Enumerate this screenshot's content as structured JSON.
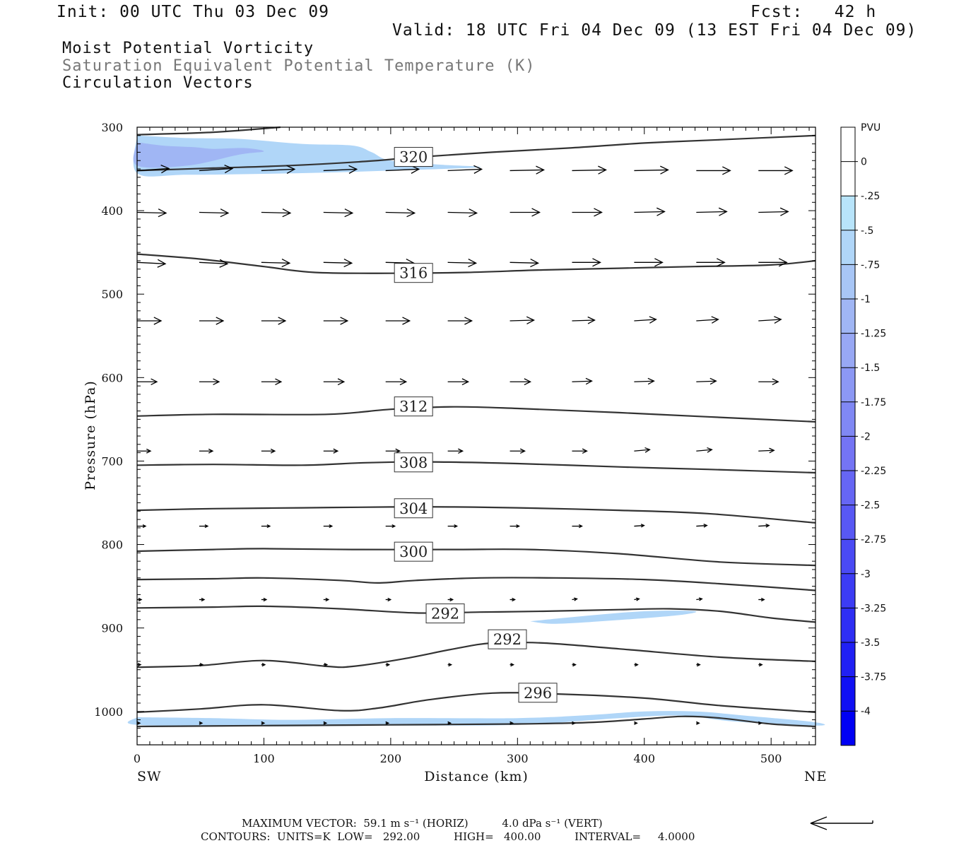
{
  "header": {
    "init": "Init: 00 UTC Thu 03 Dec 09",
    "fcst": "Fcst:   42 h",
    "valid": "Valid: 18 UTC Fri 04 Dec 09 (13 EST Fri 04 Dec 09)",
    "line1": "Moist Potential Vorticity",
    "line2": "Saturation Equivalent Potential Temperature (K)",
    "line3": "Circulation Vectors"
  },
  "footer": {
    "max_vector": "MAXIMUM VECTOR:  59.1 m s⁻¹ (HORIZ)          4.0 dPa s⁻¹ (VERT)",
    "contours": "CONTOURS:  UNITS=K  LOW=   292.00          HIGH=   400.00          INTERVAL=     4.0000"
  },
  "colors": {
    "fill_025": "#b8e4fa",
    "fill_075": "#a8c6f6",
    "contour": "#333333",
    "vector": "#000000"
  },
  "chart_data": {
    "type": "cross-section",
    "xlabel": "Distance (km)",
    "ylabel": "Pressure (hPa)",
    "xlim": [
      0,
      535
    ],
    "ylim": [
      1040,
      300
    ],
    "x_ticks": [
      0,
      100,
      200,
      300,
      400,
      500
    ],
    "y_ticks": [
      300,
      400,
      500,
      600,
      700,
      800,
      900,
      1000
    ],
    "x_left_label": "SW",
    "x_right_label": "NE",
    "colorbar": {
      "title": "PVU",
      "labels": [
        "0",
        "-.25",
        "-.5",
        "-.75",
        "-1",
        "-1.25",
        "-1.5",
        "-1.75",
        "-2",
        "-2.25",
        "-2.5",
        "-2.75",
        "-3",
        "-3.25",
        "-3.5",
        "-3.75",
        "-4"
      ],
      "colors": [
        "#ffffff",
        "#ffffff",
        "#b8e4fa",
        "#b0d6f8",
        "#a8c6f6",
        "#a0b6f4",
        "#98a8f4",
        "#8c98f4",
        "#8088f4",
        "#7474f4",
        "#6666f4",
        "#5858f4",
        "#4a4af4",
        "#3c3cf4",
        "#2e2ef4",
        "#2020f4",
        "#1010f4",
        "#0000f4"
      ]
    },
    "contours": [
      {
        "level": 320,
        "label": "320",
        "points": [
          [
            0,
            309
          ],
          [
            60,
            306
          ],
          [
            113,
            300
          ]
        ]
      },
      {
        "level": 320,
        "label": "320",
        "label_at": [
          218,
          336
        ],
        "points": [
          [
            0,
            352
          ],
          [
            60,
            349
          ],
          [
            120,
            346
          ],
          [
            180,
            341
          ],
          [
            220,
            336
          ],
          [
            280,
            330
          ],
          [
            340,
            325
          ],
          [
            400,
            319
          ],
          [
            460,
            315
          ],
          [
            535,
            310
          ]
        ]
      },
      {
        "level": 316,
        "label": "316",
        "label_at": [
          218,
          475
        ],
        "points": [
          [
            0,
            452
          ],
          [
            50,
            458
          ],
          [
            100,
            467
          ],
          [
            140,
            474
          ],
          [
            200,
            475
          ],
          [
            260,
            474
          ],
          [
            320,
            471
          ],
          [
            380,
            469
          ],
          [
            440,
            467
          ],
          [
            500,
            465
          ],
          [
            535,
            460
          ]
        ]
      },
      {
        "level": 312,
        "label": "312",
        "label_at": [
          218,
          635
        ],
        "points": [
          [
            0,
            646
          ],
          [
            60,
            644
          ],
          [
            150,
            644
          ],
          [
            200,
            638
          ],
          [
            250,
            635
          ],
          [
            300,
            637
          ],
          [
            380,
            642
          ],
          [
            450,
            647
          ],
          [
            535,
            653
          ]
        ]
      },
      {
        "level": 308,
        "label": "308",
        "label_at": [
          218,
          702
        ],
        "points": [
          [
            0,
            705
          ],
          [
            60,
            704
          ],
          [
            130,
            705
          ],
          [
            180,
            702
          ],
          [
            230,
            701
          ],
          [
            300,
            703
          ],
          [
            380,
            707
          ],
          [
            450,
            710
          ],
          [
            535,
            714
          ]
        ]
      },
      {
        "level": 304,
        "label": "304",
        "label_at": [
          218,
          757
        ],
        "points": [
          [
            0,
            759
          ],
          [
            60,
            757
          ],
          [
            130,
            756
          ],
          [
            200,
            755
          ],
          [
            250,
            755
          ],
          [
            300,
            756
          ],
          [
            380,
            759
          ],
          [
            450,
            763
          ],
          [
            535,
            774
          ]
        ]
      },
      {
        "level": 300,
        "label": "300",
        "label_at": [
          218,
          809
        ],
        "points": [
          [
            0,
            808
          ],
          [
            60,
            806
          ],
          [
            100,
            805
          ],
          [
            170,
            806
          ],
          [
            250,
            806
          ],
          [
            310,
            806
          ],
          [
            380,
            811
          ],
          [
            460,
            821
          ],
          [
            535,
            825
          ]
        ]
      },
      {
        "level": 296,
        "label": "",
        "points": [
          [
            0,
            842
          ],
          [
            60,
            841
          ],
          [
            100,
            840
          ],
          [
            160,
            843
          ],
          [
            190,
            846
          ],
          [
            220,
            843
          ],
          [
            270,
            840
          ],
          [
            330,
            840
          ],
          [
            400,
            842
          ],
          [
            460,
            847
          ],
          [
            535,
            855
          ]
        ]
      },
      {
        "level": 292,
        "label": "292",
        "label_at": [
          243,
          883
        ],
        "points": [
          [
            0,
            876
          ],
          [
            60,
            875
          ],
          [
            100,
            874
          ],
          [
            160,
            877
          ],
          [
            220,
            882
          ],
          [
            270,
            881
          ],
          [
            320,
            880
          ],
          [
            380,
            878
          ],
          [
            420,
            877
          ],
          [
            460,
            880
          ],
          [
            500,
            888
          ],
          [
            535,
            893
          ]
        ]
      },
      {
        "level": 292,
        "label": "292",
        "label_at": [
          292,
          914
        ],
        "points": [
          [
            0,
            947
          ],
          [
            50,
            945
          ],
          [
            100,
            939
          ],
          [
            150,
            946
          ],
          [
            170,
            946
          ],
          [
            210,
            937
          ],
          [
            250,
            925
          ],
          [
            280,
            918
          ],
          [
            320,
            918
          ],
          [
            380,
            925
          ],
          [
            460,
            935
          ],
          [
            535,
            940
          ]
        ]
      },
      {
        "level": 296,
        "label": "296",
        "label_at": [
          316,
          978
        ],
        "points": [
          [
            0,
            1001
          ],
          [
            50,
            997
          ],
          [
            100,
            992
          ],
          [
            160,
            999
          ],
          [
            190,
            996
          ],
          [
            230,
            986
          ],
          [
            280,
            978
          ],
          [
            330,
            979
          ],
          [
            400,
            984
          ],
          [
            460,
            993
          ],
          [
            535,
            1001
          ]
        ]
      },
      {
        "level": 300,
        "label": "",
        "points": [
          [
            0,
            1018
          ],
          [
            100,
            1017
          ],
          [
            200,
            1016
          ],
          [
            300,
            1015
          ],
          [
            360,
            1013
          ],
          [
            400,
            1009
          ],
          [
            430,
            1006
          ],
          [
            460,
            1008
          ],
          [
            500,
            1015
          ],
          [
            535,
            1018
          ]
        ]
      }
    ],
    "shading": [
      {
        "level": "-.5",
        "points": [
          [
            0,
            310
          ],
          [
            40,
            313
          ],
          [
            80,
            314
          ],
          [
            130,
            320
          ],
          [
            170,
            322
          ],
          [
            185,
            330
          ],
          [
            200,
            340
          ],
          [
            240,
            345
          ],
          [
            270,
            348
          ],
          [
            200,
            352
          ],
          [
            130,
            355
          ],
          [
            40,
            357
          ],
          [
            0,
            355
          ]
        ]
      },
      {
        "level": "-1",
        "points": [
          [
            0,
            318
          ],
          [
            20,
            322
          ],
          [
            45,
            324
          ],
          [
            60,
            326
          ],
          [
            85,
            325
          ],
          [
            100,
            329
          ],
          [
            80,
            333
          ],
          [
            40,
            346
          ],
          [
            0,
            346
          ]
        ]
      },
      {
        "level": "-.5",
        "points": [
          [
            310,
            892
          ],
          [
            350,
            886
          ],
          [
            400,
            880
          ],
          [
            440,
            880
          ],
          [
            425,
            885
          ],
          [
            375,
            891
          ],
          [
            330,
            895
          ]
        ]
      },
      {
        "level": "-.5",
        "points": [
          [
            0,
            1007
          ],
          [
            60,
            1008
          ],
          [
            120,
            1010
          ],
          [
            200,
            1008
          ],
          [
            300,
            1008
          ],
          [
            360,
            1004
          ],
          [
            400,
            1000
          ],
          [
            440,
            1000
          ],
          [
            480,
            1005
          ],
          [
            535,
            1013
          ],
          [
            535,
            1017
          ],
          [
            470,
            1012
          ],
          [
            430,
            1005
          ],
          [
            380,
            1008
          ],
          [
            300,
            1016
          ],
          [
            200,
            1017
          ],
          [
            100,
            1018
          ],
          [
            0,
            1016
          ]
        ]
      }
    ],
    "vectors": {
      "x": [
        0,
        49,
        98,
        147,
        196,
        245,
        294,
        343,
        392,
        441,
        490
      ],
      "rows": [
        {
          "p": 352,
          "dx": [
            45,
            47,
            47,
            47,
            47,
            48,
            48,
            48,
            48,
            48,
            48
          ],
          "dp": [
            -3,
            -3,
            -2,
            -2,
            -2,
            -2,
            -1,
            -1,
            -1,
            0,
            0
          ]
        },
        {
          "p": 402,
          "dx": [
            41,
            41,
            41,
            41,
            41,
            41,
            42,
            42,
            43,
            43,
            42
          ],
          "dp": [
            1,
            1,
            1,
            1,
            1,
            1,
            0,
            0,
            -1,
            -1,
            -1
          ]
        },
        {
          "p": 462,
          "dx": [
            40,
            40,
            40,
            40,
            40,
            40,
            40,
            40,
            40,
            40,
            40
          ],
          "dp": [
            2,
            2,
            1,
            1,
            1,
            1,
            1,
            0,
            0,
            0,
            0
          ]
        },
        {
          "p": 532,
          "dx": [
            34,
            34,
            34,
            34,
            34,
            34,
            34,
            32,
            31,
            31,
            32
          ],
          "dp": [
            0,
            0,
            0,
            0,
            0,
            0,
            -1,
            -1,
            -2,
            -2,
            -2
          ]
        },
        {
          "p": 605,
          "dx": [
            28,
            28,
            28,
            29,
            29,
            29,
            29,
            28,
            28,
            28,
            28
          ],
          "dp": [
            0,
            0,
            0,
            0,
            0,
            0,
            0,
            -1,
            -1,
            -1,
            0
          ]
        },
        {
          "p": 688,
          "dx": [
            19,
            19,
            19,
            20,
            20,
            21,
            21,
            21,
            22,
            22,
            22
          ],
          "dp": [
            0,
            0,
            0,
            0,
            0,
            0,
            0,
            0,
            -2,
            -2,
            -1
          ]
        },
        {
          "p": 778,
          "dx": [
            12,
            12,
            12,
            12,
            13,
            13,
            13,
            14,
            14,
            15,
            15
          ],
          "dp": [
            0,
            0,
            0,
            0,
            0,
            0,
            0,
            0,
            -1,
            -1,
            -1
          ]
        },
        {
          "p": 866,
          "dx": [
            6,
            7,
            7,
            7,
            7,
            7,
            7,
            7,
            7,
            8,
            8
          ],
          "dp": [
            0,
            0,
            0,
            0,
            0,
            0,
            0,
            -1,
            -1,
            -1,
            0
          ]
        },
        {
          "p": 944,
          "dx": [
            5,
            5,
            5,
            5,
            5,
            5,
            5,
            5,
            5,
            5,
            5
          ],
          "dp": [
            0,
            0,
            0,
            0,
            0,
            0,
            0,
            0,
            0,
            0,
            0
          ]
        },
        {
          "p": 1014,
          "dx": [
            4,
            4,
            4,
            4,
            4,
            4,
            4,
            4,
            4,
            4,
            4
          ],
          "dp": [
            0,
            0,
            0,
            0,
            0,
            0,
            0,
            0,
            0,
            0,
            0
          ]
        }
      ]
    }
  }
}
